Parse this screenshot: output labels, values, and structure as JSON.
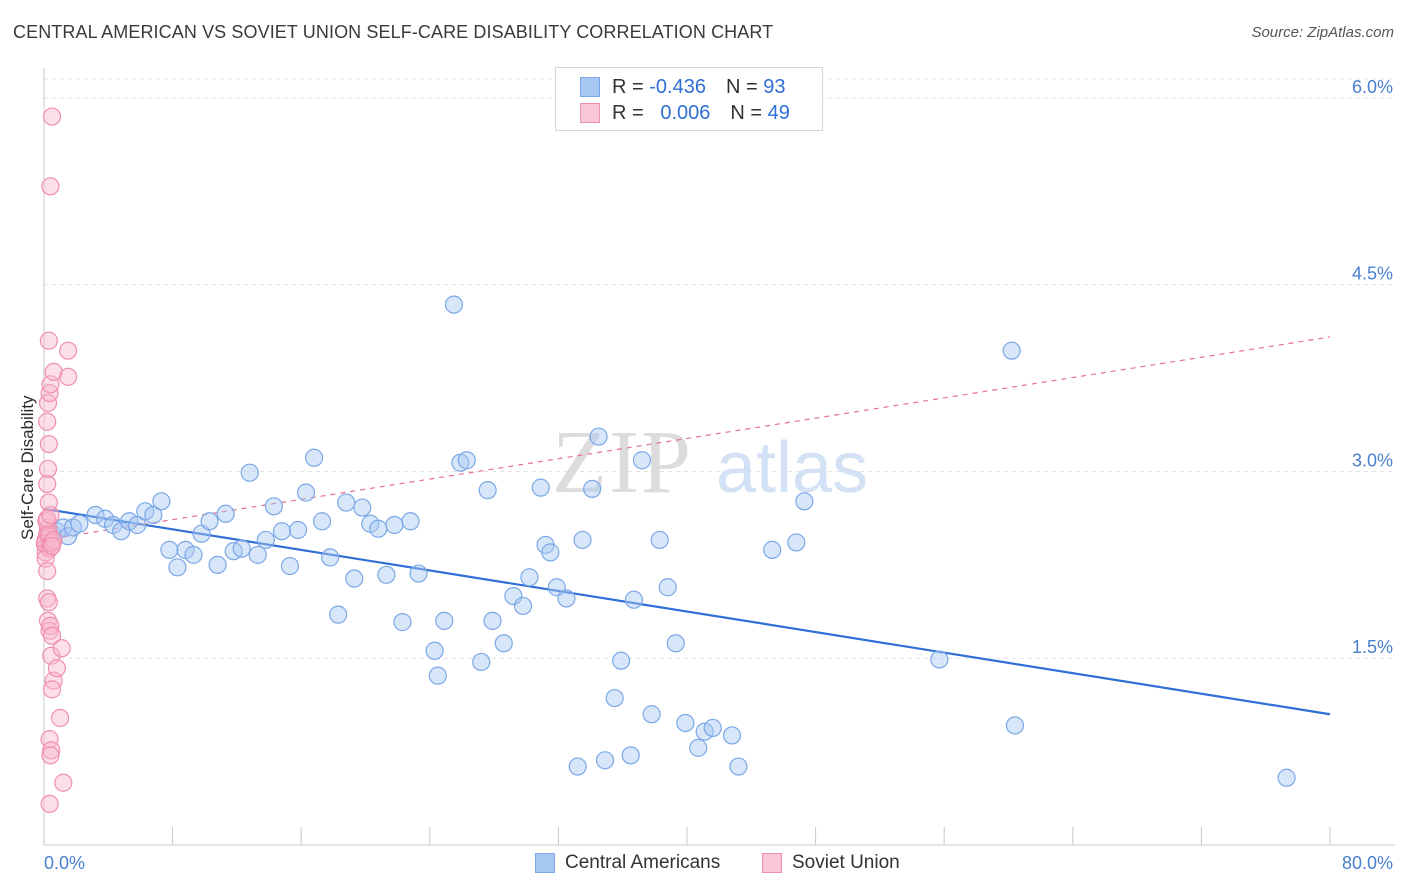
{
  "title": "CENTRAL AMERICAN VS SOVIET UNION SELF-CARE DISABILITY CORRELATION CHART",
  "source": "Source: ZipAtlas.com",
  "watermark": {
    "zip": "ZIP",
    "atlas": "atlas"
  },
  "legend": {
    "rows": [
      {
        "r_label": "R =",
        "r_value": "-0.436",
        "n_label": "N =",
        "n_value": "93",
        "color": "#a8c8f4"
      },
      {
        "r_label": "R =",
        "r_value": "0.006",
        "n_label": "N =",
        "n_value": "49",
        "color": "#f9b8cc"
      }
    ]
  },
  "bottom_legend": [
    "Central Americans",
    "Soviet Union"
  ],
  "chart_data": {
    "type": "scatter",
    "title": "CENTRAL AMERICAN VS SOVIET UNION SELF-CARE DISABILITY CORRELATION CHART",
    "xlabel": "",
    "ylabel": "Self-Care Disability",
    "xlim": [
      0,
      80
    ],
    "ylim": [
      0,
      6.2
    ],
    "x_tick_labels": [
      "0.0%",
      "80.0%"
    ],
    "y_ticks": [
      1.5,
      3.0,
      4.5,
      6.0
    ],
    "y_tick_labels": [
      "1.5%",
      "3.0%",
      "4.5%",
      "6.0%"
    ],
    "grid": true,
    "series": [
      {
        "name": "Central Americans",
        "color": "#7aa8e6",
        "fill": "#a8c8f4",
        "trend": {
          "x": [
            0,
            80
          ],
          "y": [
            2.7,
            1.05
          ],
          "style": "solid",
          "color": "#2f6fd6"
        },
        "points": [
          [
            0.5,
            2.5
          ],
          [
            0.8,
            2.52
          ],
          [
            1.2,
            2.55
          ],
          [
            1.5,
            2.48
          ],
          [
            1.8,
            2.55
          ],
          [
            2.2,
            2.58
          ],
          [
            3.2,
            2.65
          ],
          [
            3.8,
            2.62
          ],
          [
            4.3,
            2.57
          ],
          [
            4.8,
            2.52
          ],
          [
            5.3,
            2.6
          ],
          [
            5.8,
            2.57
          ],
          [
            6.3,
            2.68
          ],
          [
            6.8,
            2.65
          ],
          [
            7.3,
            2.76
          ],
          [
            7.8,
            2.37
          ],
          [
            8.3,
            2.23
          ],
          [
            8.8,
            2.37
          ],
          [
            9.3,
            2.33
          ],
          [
            9.8,
            2.5
          ],
          [
            10.3,
            2.6
          ],
          [
            10.8,
            2.25
          ],
          [
            11.3,
            2.66
          ],
          [
            11.8,
            2.36
          ],
          [
            12.3,
            2.38
          ],
          [
            12.8,
            2.99
          ],
          [
            13.3,
            2.33
          ],
          [
            13.8,
            2.45
          ],
          [
            14.3,
            2.72
          ],
          [
            14.8,
            2.52
          ],
          [
            15.3,
            2.24
          ],
          [
            15.8,
            2.53
          ],
          [
            16.3,
            2.83
          ],
          [
            16.8,
            3.11
          ],
          [
            17.3,
            2.6
          ],
          [
            17.8,
            2.31
          ],
          [
            18.3,
            1.85
          ],
          [
            18.8,
            2.75
          ],
          [
            19.3,
            2.14
          ],
          [
            19.8,
            2.71
          ],
          [
            20.3,
            2.58
          ],
          [
            20.8,
            2.54
          ],
          [
            21.3,
            2.17
          ],
          [
            21.8,
            2.57
          ],
          [
            22.3,
            1.79
          ],
          [
            22.8,
            2.6
          ],
          [
            23.3,
            2.18
          ],
          [
            24.3,
            1.56
          ],
          [
            24.5,
            1.36
          ],
          [
            24.9,
            1.8
          ],
          [
            25.5,
            4.34
          ],
          [
            25.9,
            3.07
          ],
          [
            26.3,
            3.09
          ],
          [
            27.2,
            1.47
          ],
          [
            27.6,
            2.85
          ],
          [
            27.9,
            1.8
          ],
          [
            28.6,
            1.62
          ],
          [
            29.2,
            2.0
          ],
          [
            29.8,
            1.92
          ],
          [
            30.2,
            2.15
          ],
          [
            30.9,
            2.87
          ],
          [
            31.2,
            2.41
          ],
          [
            31.5,
            2.35
          ],
          [
            31.9,
            2.07
          ],
          [
            32.5,
            1.98
          ],
          [
            33.2,
            0.63
          ],
          [
            33.5,
            2.45
          ],
          [
            34.1,
            2.86
          ],
          [
            34.5,
            3.28
          ],
          [
            34.9,
            0.68
          ],
          [
            35.5,
            1.18
          ],
          [
            35.9,
            1.48
          ],
          [
            36.5,
            0.72
          ],
          [
            36.7,
            1.97
          ],
          [
            37.2,
            3.09
          ],
          [
            37.8,
            1.05
          ],
          [
            38.3,
            2.45
          ],
          [
            38.8,
            2.07
          ],
          [
            39.3,
            1.62
          ],
          [
            39.9,
            0.98
          ],
          [
            40.7,
            0.78
          ],
          [
            41.1,
            0.91
          ],
          [
            41.6,
            0.94
          ],
          [
            42.8,
            0.88
          ],
          [
            43.2,
            0.63
          ],
          [
            45.3,
            2.37
          ],
          [
            46.8,
            2.43
          ],
          [
            47.3,
            2.76
          ],
          [
            55.7,
            1.49
          ],
          [
            60.2,
            3.97
          ],
          [
            60.4,
            0.96
          ],
          [
            77.3,
            0.54
          ],
          [
            0.3,
            2.45
          ]
        ]
      },
      {
        "name": "Soviet Union",
        "color": "#f08fae",
        "fill": "#f9b8cc",
        "trend": {
          "x": [
            0,
            80
          ],
          "y": [
            2.45,
            4.08
          ],
          "style": "dashed",
          "color": "#e8708f"
        },
        "points": [
          [
            0.1,
            2.45
          ],
          [
            0.15,
            2.4
          ],
          [
            0.2,
            2.5
          ],
          [
            0.1,
            2.35
          ],
          [
            0.25,
            2.55
          ],
          [
            0.3,
            2.48
          ],
          [
            0.05,
            2.42
          ],
          [
            0.15,
            2.6
          ],
          [
            0.35,
            2.38
          ],
          [
            0.1,
            2.3
          ],
          [
            0.2,
            2.2
          ],
          [
            0.4,
            2.42
          ],
          [
            0.3,
            2.5
          ],
          [
            0.2,
            2.62
          ],
          [
            0.5,
            2.43
          ],
          [
            0.6,
            2.45
          ],
          [
            0.4,
            2.65
          ],
          [
            0.3,
            2.75
          ],
          [
            0.2,
            2.9
          ],
          [
            0.25,
            3.02
          ],
          [
            0.3,
            3.22
          ],
          [
            0.2,
            3.4
          ],
          [
            0.25,
            3.55
          ],
          [
            0.35,
            3.63
          ],
          [
            0.4,
            3.7
          ],
          [
            0.3,
            4.05
          ],
          [
            0.6,
            3.8
          ],
          [
            1.5,
            3.97
          ],
          [
            1.5,
            3.76
          ],
          [
            0.5,
            5.85
          ],
          [
            0.4,
            5.29
          ],
          [
            0.2,
            1.98
          ],
          [
            0.3,
            1.95
          ],
          [
            0.25,
            1.8
          ],
          [
            0.35,
            1.72
          ],
          [
            0.4,
            1.76
          ],
          [
            0.5,
            1.68
          ],
          [
            0.45,
            1.52
          ],
          [
            1.1,
            1.58
          ],
          [
            0.6,
            1.32
          ],
          [
            0.8,
            1.42
          ],
          [
            0.5,
            1.25
          ],
          [
            1.0,
            1.02
          ],
          [
            0.35,
            0.85
          ],
          [
            0.45,
            0.76
          ],
          [
            0.4,
            0.72
          ],
          [
            1.2,
            0.5
          ],
          [
            0.35,
            0.33
          ],
          [
            0.5,
            2.4
          ]
        ]
      }
    ]
  }
}
